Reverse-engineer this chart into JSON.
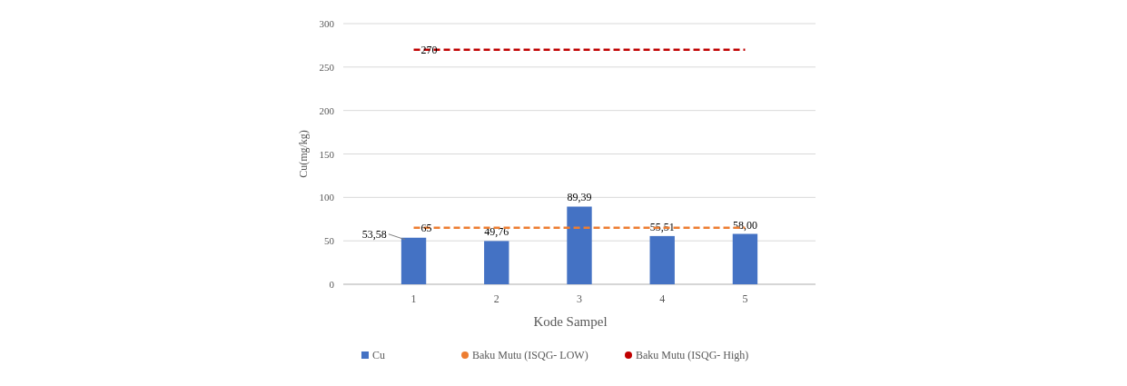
{
  "chart_data": {
    "type": "bar",
    "xlabel": "Kode Sampel",
    "ylabel": "Cu(mg/kg)",
    "categories": [
      "1",
      "2",
      "3",
      "4",
      "5"
    ],
    "series": [
      {
        "name": "Cu",
        "color": "#4472c4",
        "values": [
          53.58,
          49.76,
          89.39,
          55.51,
          58.0
        ],
        "value_labels": [
          "53,58",
          "49,76",
          "89,39",
          "55,51",
          "58,00"
        ]
      },
      {
        "name": "Baku Mutu (ISQG- LOW)",
        "type": "line",
        "color": "#ed7d31",
        "values": [
          65,
          65,
          65,
          65,
          65
        ],
        "value_labels": [
          "65",
          null,
          null,
          null,
          null
        ],
        "line_style": "dashed"
      },
      {
        "name": "Baku Mutu (ISQG- High)",
        "type": "line",
        "color": "#c00000",
        "values": [
          270,
          270,
          270,
          270,
          270
        ],
        "value_labels": [
          "270",
          null,
          null,
          null,
          null
        ],
        "line_style": "dashed"
      }
    ],
    "ylim": [
      0,
      300
    ],
    "yticks": [
      0,
      50,
      100,
      150,
      200,
      250,
      300
    ],
    "grid": "y",
    "legend": "bottom"
  }
}
